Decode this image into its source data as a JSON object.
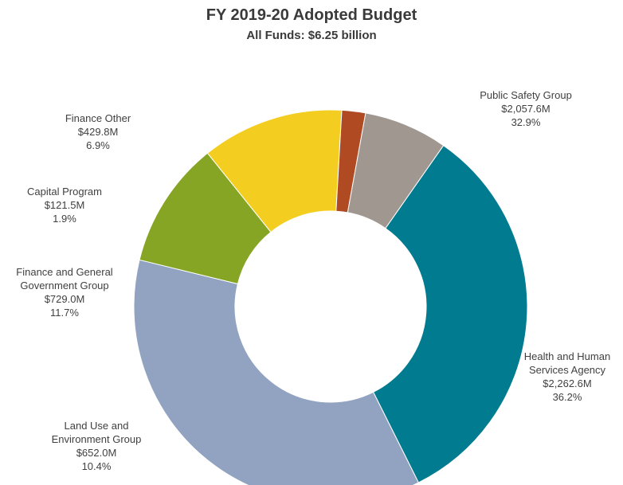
{
  "chart_data": {
    "type": "pie",
    "title": "FY 2019-20 Adopted Budget",
    "subtitle": "All Funds: $6.25 billion",
    "slices": [
      {
        "name": "Public Safety Group",
        "label_lines": [
          "Public Safety Group"
        ],
        "amount": "$2,057.6M",
        "percent": "32.9%",
        "value": 2057.6,
        "color": "#007b8f"
      },
      {
        "name": "Health and Human Services Agency",
        "label_lines": [
          "Health and Human",
          "Services Agency"
        ],
        "amount": "$2,262.6M",
        "percent": "36.2%",
        "value": 2262.6,
        "color": "#91a3c1"
      },
      {
        "name": "Land Use and Environment Group",
        "label_lines": [
          "Land Use and",
          "Environment Group"
        ],
        "amount": "$652.0M",
        "percent": "10.4%",
        "value": 652.0,
        "color": "#87a524"
      },
      {
        "name": "Finance and General Government Group",
        "label_lines": [
          "Finance and General",
          "Government Group"
        ],
        "amount": "$729.0M",
        "percent": "11.7%",
        "value": 729.0,
        "color": "#f3cd1f"
      },
      {
        "name": "Capital Program",
        "label_lines": [
          "Capital Program"
        ],
        "amount": "$121.5M",
        "percent": "1.9%",
        "value": 121.5,
        "color": "#b04a22"
      },
      {
        "name": "Finance Other",
        "label_lines": [
          "Finance Other"
        ],
        "amount": "$429.8M",
        "percent": "6.9%",
        "value": 429.8,
        "color": "#a09791"
      }
    ]
  }
}
